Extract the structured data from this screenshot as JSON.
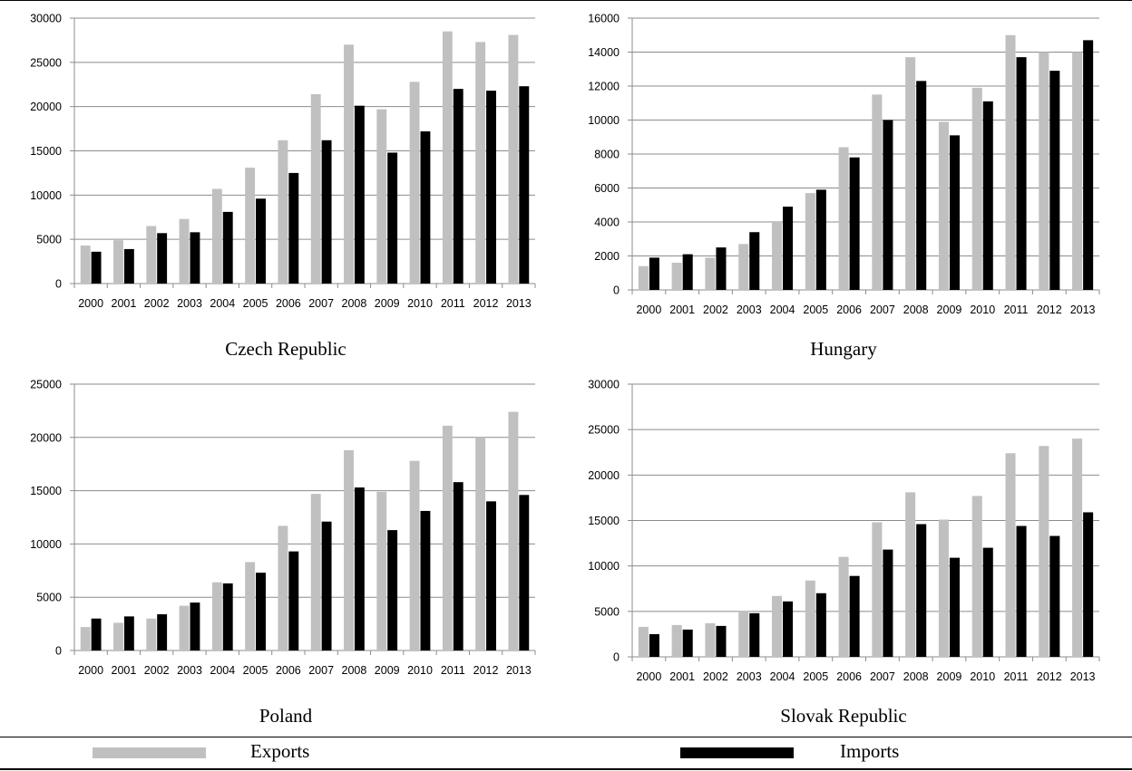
{
  "colors": {
    "exports": "#c0c0c0",
    "imports": "#000000",
    "grid": "#8c8c8c",
    "axis": "#8c8c8c"
  },
  "legend": {
    "exports_label": "Exports",
    "imports_label": "Imports"
  },
  "chart_data": [
    {
      "type": "bar",
      "title": "Czech Republic",
      "categories": [
        "2000",
        "2001",
        "2002",
        "2003",
        "2004",
        "2005",
        "2006",
        "2007",
        "2008",
        "2009",
        "2010",
        "2011",
        "2012",
        "2013"
      ],
      "ylim": [
        0,
        30000
      ],
      "yticks": [
        0,
        5000,
        10000,
        15000,
        20000,
        25000,
        30000
      ],
      "grid": true,
      "legend_position": "bottom",
      "series": [
        {
          "name": "Exports",
          "values": [
            4300,
            4900,
            6500,
            7300,
            10700,
            13100,
            16200,
            21400,
            27000,
            19700,
            22800,
            28500,
            27300,
            28100
          ]
        },
        {
          "name": "Imports",
          "values": [
            3600,
            3900,
            5700,
            5800,
            8100,
            9600,
            12500,
            16200,
            20100,
            14800,
            17200,
            22000,
            21800,
            22300
          ]
        }
      ]
    },
    {
      "type": "bar",
      "title": "Hungary",
      "categories": [
        "2000",
        "2001",
        "2002",
        "2003",
        "2004",
        "2005",
        "2006",
        "2007",
        "2008",
        "2009",
        "2010",
        "2011",
        "2012",
        "2013"
      ],
      "ylim": [
        0,
        16000
      ],
      "yticks": [
        0,
        2000,
        4000,
        6000,
        8000,
        10000,
        12000,
        14000,
        16000
      ],
      "grid": true,
      "legend_position": "bottom",
      "series": [
        {
          "name": "Exports",
          "values": [
            1400,
            1600,
            1900,
            2700,
            4000,
            5700,
            8400,
            11500,
            13700,
            9900,
            11900,
            15000,
            14000,
            14000
          ]
        },
        {
          "name": "Imports",
          "values": [
            1900,
            2100,
            2500,
            3400,
            4900,
            5900,
            7800,
            10000,
            12300,
            9100,
            11100,
            13700,
            12900,
            14700
          ]
        }
      ]
    },
    {
      "type": "bar",
      "title": "Poland",
      "categories": [
        "2000",
        "2001",
        "2002",
        "2003",
        "2004",
        "2005",
        "2006",
        "2007",
        "2008",
        "2009",
        "2010",
        "2011",
        "2012",
        "2013"
      ],
      "ylim": [
        0,
        25000
      ],
      "yticks": [
        0,
        5000,
        10000,
        15000,
        20000,
        25000
      ],
      "grid": true,
      "legend_position": "bottom",
      "series": [
        {
          "name": "Exports",
          "values": [
            2200,
            2600,
            3000,
            4200,
            6400,
            8300,
            11700,
            14700,
            18800,
            14900,
            17800,
            21100,
            20000,
            22400
          ]
        },
        {
          "name": "Imports",
          "values": [
            3000,
            3200,
            3400,
            4500,
            6300,
            7300,
            9300,
            12100,
            15300,
            11300,
            13100,
            15800,
            14000,
            14600
          ]
        }
      ]
    },
    {
      "type": "bar",
      "title": "Slovak Republic",
      "categories": [
        "2000",
        "2001",
        "2002",
        "2003",
        "2004",
        "2005",
        "2006",
        "2007",
        "2008",
        "2009",
        "2010",
        "2011",
        "2012",
        "2013"
      ],
      "ylim": [
        0,
        30000
      ],
      "yticks": [
        0,
        5000,
        10000,
        15000,
        20000,
        25000,
        30000
      ],
      "grid": true,
      "legend_position": "bottom",
      "series": [
        {
          "name": "Exports",
          "values": [
            3300,
            3500,
            3700,
            5000,
            6700,
            8400,
            11000,
            14800,
            18100,
            15100,
            17700,
            22400,
            23200,
            24000
          ]
        },
        {
          "name": "Imports",
          "values": [
            2500,
            3000,
            3400,
            4800,
            6100,
            7000,
            8900,
            11800,
            14600,
            10900,
            12000,
            14400,
            13300,
            15900
          ]
        }
      ]
    }
  ]
}
